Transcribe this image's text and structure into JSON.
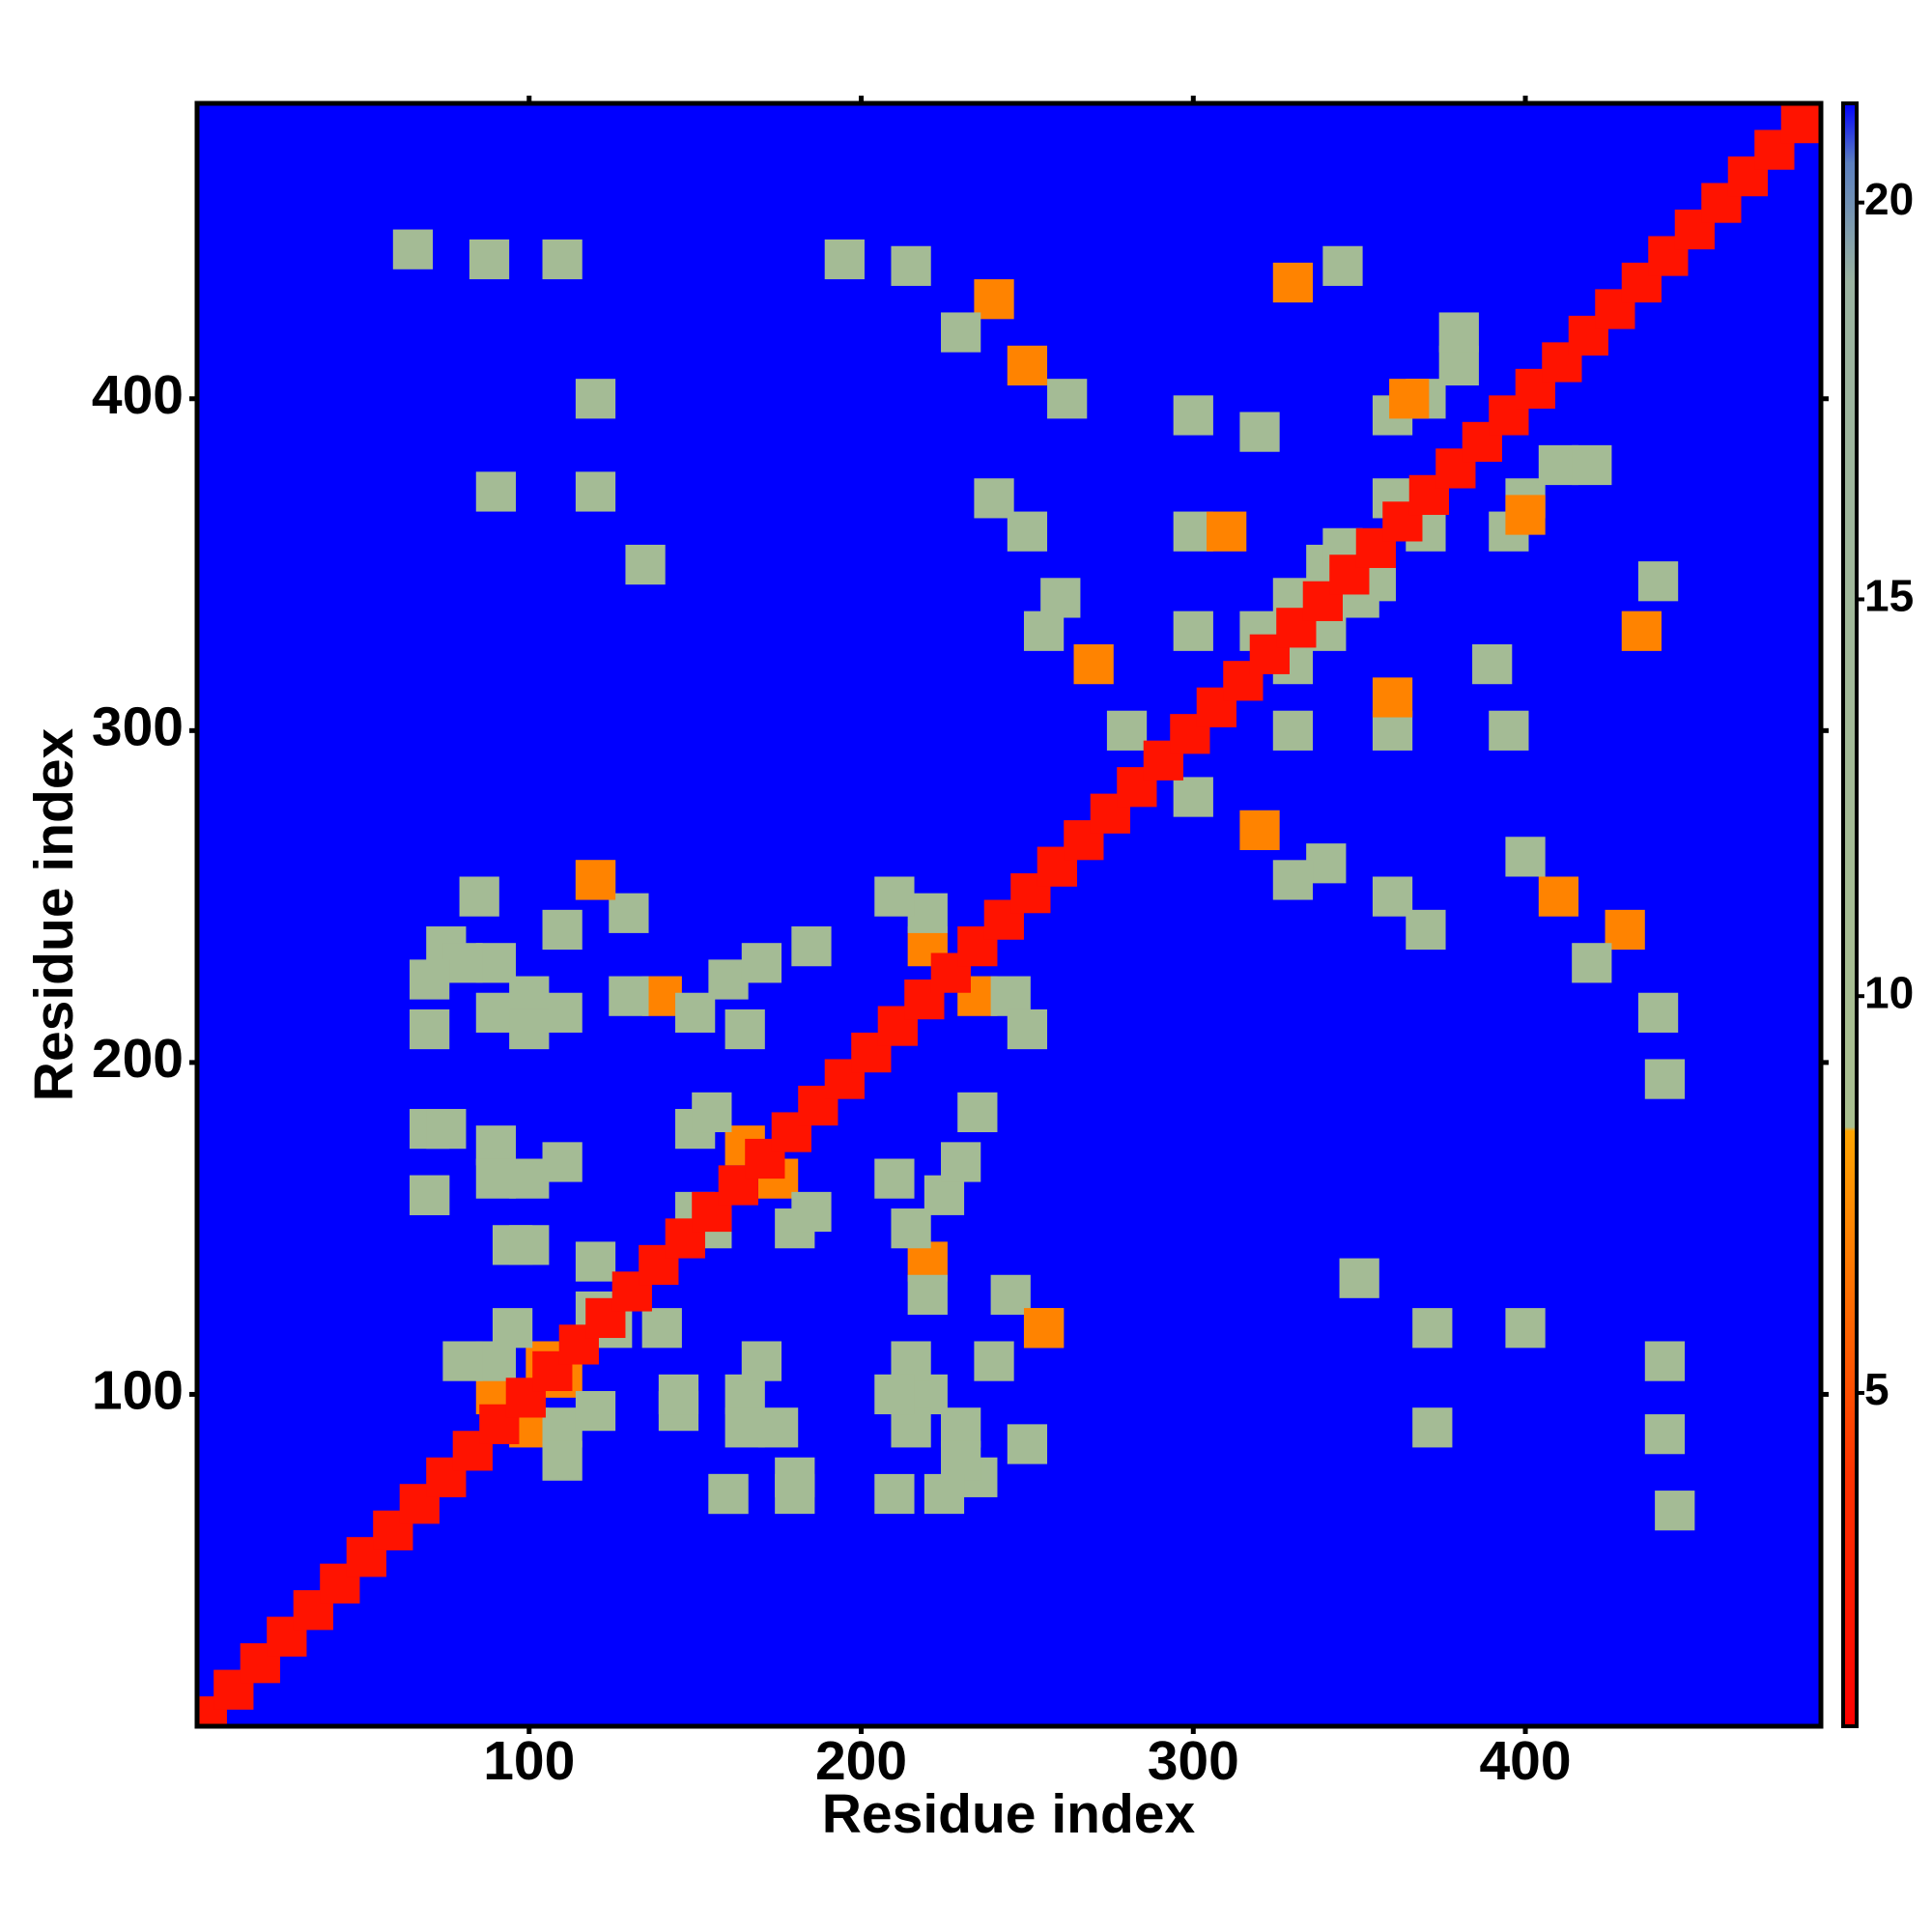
{
  "chart_data": {
    "type": "heatmap",
    "symmetric": true,
    "background": "#0000ff",
    "x_label": "Residue index",
    "y_label": "Residue index",
    "xlim": [
      0,
      489
    ],
    "ylim": [
      0,
      489
    ],
    "xticks": [
      100,
      200,
      300,
      400
    ],
    "yticks": [
      100,
      200,
      300,
      400
    ],
    "colorbar": {
      "lim": [
        0.8,
        21.25
      ],
      "ticks": [
        5,
        10,
        15,
        20
      ],
      "colorscale": [
        [
          0.8,
          "#ff0000"
        ],
        [
          4,
          "#ff3300"
        ],
        [
          8.3,
          "#ffa500"
        ],
        [
          8.35,
          "#a9bf8f"
        ],
        [
          19,
          "#9ab3a0"
        ],
        [
          20.5,
          "#5b7fbf"
        ],
        [
          21.25,
          "#0000ff"
        ]
      ]
    },
    "x": [
      3,
      11,
      19,
      27,
      35,
      43,
      51,
      59,
      67,
      75,
      83,
      91,
      99,
      107,
      115,
      123,
      131,
      139,
      147,
      155,
      163,
      171,
      179,
      187,
      195,
      203,
      211,
      219,
      227,
      235,
      243,
      251,
      259,
      267,
      275,
      283,
      291,
      299,
      307,
      315,
      323,
      331,
      339,
      347,
      355,
      363,
      371,
      379,
      387,
      395,
      403,
      411,
      419,
      427,
      435,
      443,
      451,
      459,
      467,
      475,
      483,
      88,
      65,
      110,
      195,
      215,
      240,
      250,
      262,
      230,
      90,
      120,
      135,
      120,
      250,
      260,
      270,
      280,
      240,
      255,
      300,
      320,
      330,
      345,
      360,
      370,
      380,
      300,
      310,
      320,
      330,
      340,
      355,
      370,
      400,
      420,
      300,
      75,
      90,
      100,
      120,
      130,
      70,
      90,
      110,
      140,
      160,
      185,
      150,
      70,
      90,
      100,
      70,
      95,
      120,
      125,
      150,
      175,
      185,
      155,
      90,
      105,
      110,
      80,
      95,
      145,
      165,
      180,
      170,
      160,
      210,
      230,
      220,
      240,
      255,
      210,
      230,
      250,
      225,
      220,
      245,
      210
    ],
    "y": [
      3,
      11,
      19,
      27,
      35,
      43,
      51,
      59,
      67,
      75,
      83,
      91,
      99,
      107,
      115,
      123,
      131,
      139,
      147,
      155,
      163,
      171,
      179,
      187,
      195,
      203,
      211,
      219,
      227,
      235,
      243,
      251,
      259,
      267,
      275,
      283,
      291,
      299,
      307,
      315,
      323,
      331,
      339,
      347,
      355,
      363,
      371,
      379,
      387,
      395,
      403,
      411,
      419,
      427,
      435,
      443,
      451,
      459,
      467,
      475,
      483,
      442,
      445,
      442,
      442,
      440,
      430,
      410,
      400,
      420,
      372,
      372,
      350,
      400,
      360,
      340,
      320,
      300,
      370,
      330,
      395,
      390,
      435,
      440,
      395,
      400,
      410,
      360,
      360,
      330,
      340,
      350,
      345,
      360,
      365,
      380,
      330,
      235,
      230,
      220,
      255,
      245,
      210,
      215,
      215,
      220,
      225,
      235,
      215,
      180,
      175,
      165,
      160,
      145,
      140,
      120,
      180,
      165,
      155,
      150,
      100,
      110,
      90,
      110,
      120,
      100,
      90,
      75,
      110,
      70,
      165,
      170,
      130,
      110,
      120,
      100,
      80,
      85,
      70,
      235,
      220,
      250
    ],
    "values": [
      2,
      2,
      2,
      2,
      2,
      2,
      2,
      2,
      2,
      2,
      2,
      2,
      2,
      2,
      2,
      2,
      2,
      2,
      2,
      2,
      2,
      2,
      2,
      2,
      2,
      2,
      2,
      2,
      2,
      2,
      2,
      2,
      2,
      2,
      2,
      2,
      2,
      2,
      2,
      2,
      2,
      2,
      2,
      2,
      2,
      2,
      2,
      2,
      2,
      2,
      2,
      2,
      2,
      2,
      2,
      2,
      2,
      2,
      2,
      2,
      2,
      12,
      12,
      12,
      12,
      12,
      7,
      7,
      12,
      12,
      12,
      12,
      12,
      12,
      12,
      12,
      7,
      12,
      12,
      12,
      12,
      12,
      7,
      12,
      12,
      12,
      12,
      12,
      7,
      12,
      12,
      12,
      12,
      12,
      7,
      12,
      12,
      12,
      12,
      12,
      7,
      12,
      12,
      12,
      12,
      7,
      12,
      12,
      12,
      12,
      12,
      12,
      12,
      12,
      12,
      12,
      12,
      7,
      12,
      12,
      7,
      7,
      12,
      12,
      12,
      12,
      12,
      12,
      12,
      12,
      12,
      12,
      12,
      12,
      7,
      12,
      12,
      12,
      12,
      7,
      12,
      12
    ]
  }
}
